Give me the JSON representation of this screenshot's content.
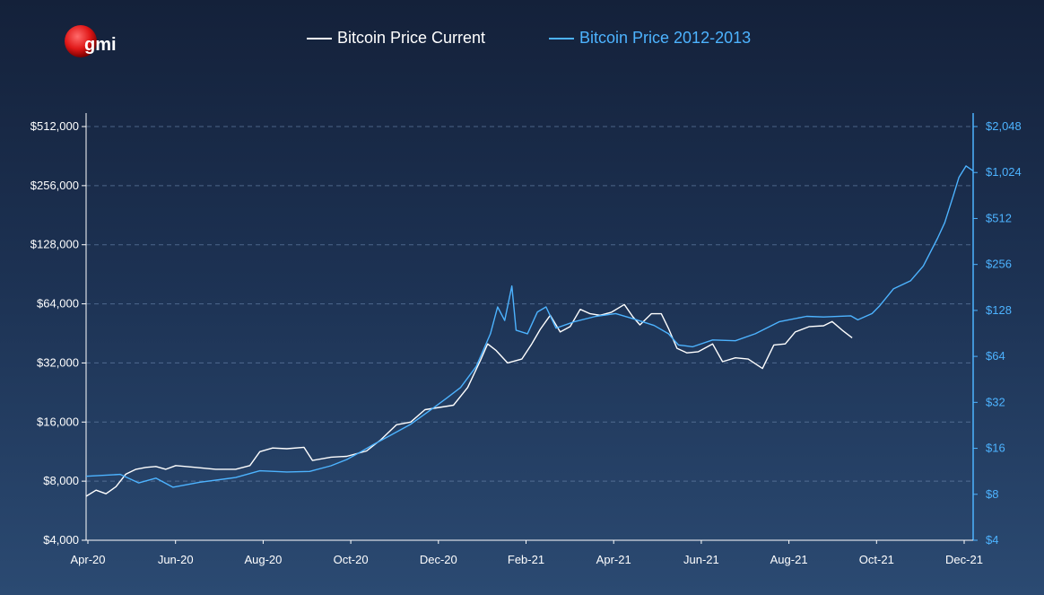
{
  "brand": {
    "logo_text": "gmi"
  },
  "legend": [
    {
      "label": "Bitcoin Price Current",
      "color": "#ffffff"
    },
    {
      "label": "Bitcoin Price 2012-2013",
      "color": "#4db3ff"
    }
  ],
  "chart_data": {
    "type": "line",
    "x_ticks": [
      "Apr-20",
      "Jun-20",
      "Aug-20",
      "Oct-20",
      "Dec-20",
      "Feb-21",
      "Apr-21",
      "Jun-21",
      "Aug-21",
      "Oct-21",
      "Dec-21"
    ],
    "xlim": [
      "2020-04-01",
      "2021-12-15"
    ],
    "left_axis": {
      "scale": "log2",
      "ylim": [
        4000,
        512000
      ],
      "ticks": [
        4000,
        8000,
        16000,
        32000,
        64000,
        128000,
        256000,
        512000
      ],
      "tick_labels": [
        "$4,000",
        "$8,000",
        "$16,000",
        "$32,000",
        "$64,000",
        "$128,000",
        "$256,000",
        "$512,000"
      ]
    },
    "right_axis": {
      "scale": "log2",
      "ylim": [
        4,
        2048
      ],
      "ticks": [
        4,
        8,
        16,
        32,
        64,
        128,
        256,
        512,
        1024,
        2048
      ],
      "tick_labels": [
        "$4",
        "$8",
        "$16",
        "$32",
        "$64",
        "$128",
        "$256",
        "$512",
        "$1,024",
        "$2,048"
      ]
    },
    "grid": {
      "horizontal": true,
      "style": "dashed"
    },
    "legend_position": "top",
    "series": [
      {
        "name": "Bitcoin Price Current",
        "axis": "left",
        "color": "#ffffff",
        "points": [
          [
            "2020-04-01",
            6700
          ],
          [
            "2020-04-08",
            7200
          ],
          [
            "2020-04-15",
            6900
          ],
          [
            "2020-04-22",
            7500
          ],
          [
            "2020-04-29",
            8700
          ],
          [
            "2020-05-06",
            9200
          ],
          [
            "2020-05-13",
            9400
          ],
          [
            "2020-05-20",
            9500
          ],
          [
            "2020-05-27",
            9200
          ],
          [
            "2020-06-03",
            9600
          ],
          [
            "2020-06-17",
            9400
          ],
          [
            "2020-07-01",
            9200
          ],
          [
            "2020-07-15",
            9200
          ],
          [
            "2020-07-25",
            9600
          ],
          [
            "2020-08-01",
            11300
          ],
          [
            "2020-08-10",
            11800
          ],
          [
            "2020-08-20",
            11700
          ],
          [
            "2020-09-01",
            11900
          ],
          [
            "2020-09-07",
            10200
          ],
          [
            "2020-09-20",
            10600
          ],
          [
            "2020-10-01",
            10700
          ],
          [
            "2020-10-15",
            11400
          ],
          [
            "2020-10-25",
            13000
          ],
          [
            "2020-11-05",
            15500
          ],
          [
            "2020-11-15",
            16000
          ],
          [
            "2020-11-25",
            18500
          ],
          [
            "2020-12-05",
            19000
          ],
          [
            "2020-12-15",
            19500
          ],
          [
            "2020-12-25",
            24000
          ],
          [
            "2021-01-03",
            33000
          ],
          [
            "2021-01-08",
            40000
          ],
          [
            "2021-01-14",
            37000
          ],
          [
            "2021-01-22",
            32000
          ],
          [
            "2021-02-01",
            33500
          ],
          [
            "2021-02-08",
            40000
          ],
          [
            "2021-02-14",
            47500
          ],
          [
            "2021-02-21",
            56000
          ],
          [
            "2021-02-28",
            46000
          ],
          [
            "2021-03-07",
            49000
          ],
          [
            "2021-03-14",
            60000
          ],
          [
            "2021-03-21",
            57000
          ],
          [
            "2021-03-28",
            56000
          ],
          [
            "2021-04-05",
            58000
          ],
          [
            "2021-04-14",
            63500
          ],
          [
            "2021-04-20",
            55000
          ],
          [
            "2021-04-25",
            50000
          ],
          [
            "2021-05-03",
            57000
          ],
          [
            "2021-05-10",
            57000
          ],
          [
            "2021-05-15",
            48000
          ],
          [
            "2021-05-21",
            38000
          ],
          [
            "2021-05-28",
            36000
          ],
          [
            "2021-06-05",
            36500
          ],
          [
            "2021-06-15",
            40000
          ],
          [
            "2021-06-22",
            32500
          ],
          [
            "2021-07-01",
            34000
          ],
          [
            "2021-07-10",
            33500
          ],
          [
            "2021-07-20",
            30000
          ],
          [
            "2021-07-28",
            39500
          ],
          [
            "2021-08-05",
            40000
          ],
          [
            "2021-08-12",
            46000
          ],
          [
            "2021-08-22",
            49000
          ],
          [
            "2021-09-01",
            49500
          ],
          [
            "2021-09-07",
            52000
          ],
          [
            "2021-09-14",
            47000
          ],
          [
            "2021-09-21",
            43000
          ]
        ]
      },
      {
        "name": "Bitcoin Price 2012-2013",
        "axis": "right",
        "color": "#4db3ff",
        "points": [
          [
            "2020-04-01",
            10.5
          ],
          [
            "2020-04-25",
            10.8
          ],
          [
            "2020-05-08",
            9.5
          ],
          [
            "2020-05-20",
            10.2
          ],
          [
            "2020-06-01",
            8.9
          ],
          [
            "2020-06-20",
            9.6
          ],
          [
            "2020-07-15",
            10.3
          ],
          [
            "2020-08-01",
            11.4
          ],
          [
            "2020-08-20",
            11.2
          ],
          [
            "2020-09-05",
            11.3
          ],
          [
            "2020-09-20",
            12.3
          ],
          [
            "2020-10-01",
            13.5
          ],
          [
            "2020-10-10",
            15
          ],
          [
            "2020-10-20",
            17
          ],
          [
            "2020-11-01",
            19.5
          ],
          [
            "2020-11-15",
            23
          ],
          [
            "2020-11-30",
            29
          ],
          [
            "2020-12-10",
            34
          ],
          [
            "2020-12-20",
            40
          ],
          [
            "2020-12-31",
            55
          ],
          [
            "2021-01-10",
            90
          ],
          [
            "2021-01-15",
            135
          ],
          [
            "2021-01-20",
            110
          ],
          [
            "2021-01-25",
            185
          ],
          [
            "2021-01-28",
            95
          ],
          [
            "2021-02-05",
            90
          ],
          [
            "2021-02-12",
            125
          ],
          [
            "2021-02-18",
            135
          ],
          [
            "2021-02-25",
            98
          ],
          [
            "2021-03-10",
            108
          ],
          [
            "2021-03-25",
            117
          ],
          [
            "2021-04-08",
            122
          ],
          [
            "2021-04-20",
            113
          ],
          [
            "2021-05-05",
            102
          ],
          [
            "2021-05-15",
            90
          ],
          [
            "2021-05-22",
            76
          ],
          [
            "2021-06-01",
            74
          ],
          [
            "2021-06-15",
            82
          ],
          [
            "2021-07-01",
            81
          ],
          [
            "2021-07-15",
            90
          ],
          [
            "2021-08-01",
            108
          ],
          [
            "2021-08-20",
            117
          ],
          [
            "2021-09-01",
            116
          ],
          [
            "2021-09-20",
            118
          ],
          [
            "2021-09-25",
            111
          ],
          [
            "2021-10-05",
            122
          ],
          [
            "2021-10-10",
            136
          ],
          [
            "2021-10-20",
            177
          ],
          [
            "2021-11-01",
            200
          ],
          [
            "2021-11-10",
            250
          ],
          [
            "2021-11-20",
            380
          ],
          [
            "2021-11-25",
            480
          ],
          [
            "2021-12-01",
            720
          ],
          [
            "2021-12-05",
            950
          ],
          [
            "2021-12-10",
            1130
          ],
          [
            "2021-12-15",
            1050
          ]
        ]
      }
    ]
  }
}
